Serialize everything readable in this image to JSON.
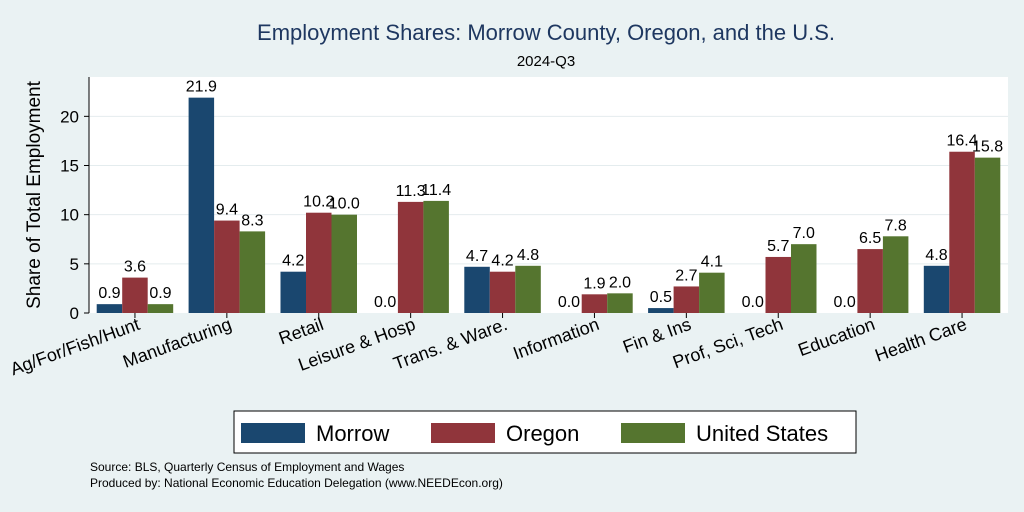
{
  "chart_data": {
    "type": "bar",
    "title": "Employment Shares: Morrow County, Oregon, and the U.S.",
    "subtitle": "2024-Q3",
    "xlabel": "",
    "ylabel": "Share of Total Employment",
    "ylim": [
      0,
      24
    ],
    "yticks": [
      "0",
      "5",
      "10",
      "15",
      "20"
    ],
    "grid": true,
    "legend_position": "bottom",
    "categories": [
      "Ag/For/Fish/Hunt",
      "Manufacturing",
      "Retail",
      "Leisure & Hosp",
      "Trans. & Ware.",
      "Information",
      "Fin & Ins",
      "Prof, Sci, Tech",
      "Education",
      "Health Care"
    ],
    "series": [
      {
        "name": "Morrow",
        "color": "#1a476f",
        "values": [
          0.9,
          21.9,
          4.2,
          0.0,
          4.7,
          0.0,
          0.5,
          0.0,
          0.0,
          4.8
        ],
        "labels": [
          "0.9",
          "21.9",
          "4.2",
          "0.0",
          "4.7",
          "0.0",
          "0.5",
          "0.0",
          "0.0",
          "4.8"
        ]
      },
      {
        "name": "Oregon",
        "color": "#90353b",
        "values": [
          3.6,
          9.4,
          10.2,
          11.3,
          4.2,
          1.9,
          2.7,
          5.7,
          6.5,
          16.4
        ],
        "labels": [
          "3.6",
          "9.4",
          "10.2",
          "11.3",
          "4.2",
          "1.9",
          "2.7",
          "5.7",
          "6.5",
          "16.4"
        ]
      },
      {
        "name": "United States",
        "color": "#55752f",
        "values": [
          0.9,
          8.3,
          10.0,
          11.4,
          4.8,
          2.0,
          4.1,
          7.0,
          7.8,
          15.8
        ],
        "labels": [
          "0.9",
          "8.3",
          "10.0",
          "11.4",
          "4.8",
          "2.0",
          "4.1",
          "7.0",
          "7.8",
          "15.8"
        ]
      }
    ]
  },
  "footer": {
    "source": "Source: BLS, Quarterly Census of Employment and Wages",
    "produced_by": "Produced by: National Economic Education Delegation (www.NEEDEcon.org)"
  }
}
